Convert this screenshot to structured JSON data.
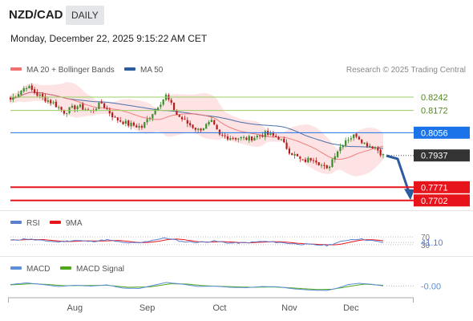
{
  "header": {
    "symbol": "NZD/CAD",
    "period": "DAILY",
    "datetime": "Monday, December 22, 2025 9:15:22 AM CET"
  },
  "legend": {
    "ma20": "MA 20 + Bollinger Bands",
    "ma50": "MA 50",
    "copyright": "Research © 2025 Trading Central",
    "rsi": "RSI",
    "rsi_ma": "9MA",
    "macd": "MACD",
    "macd_signal": "MACD Signal"
  },
  "colors": {
    "ma20": "#f07070",
    "ma50": "#2b5c9e",
    "bollinger_fill": "#fde3e3",
    "resistance": "#9ccc65",
    "pivot": "#1a73e8",
    "support": "#e8141b",
    "last": "#333333",
    "candle_up": "#3a8c2c",
    "candle_down": "#b71c1c",
    "rsi": "#5b7fd0",
    "rsi_ma": "#e8141b",
    "macd": "#5b8fd8",
    "macd_signal": "#4fa81a",
    "arrow": "#2b5c9e"
  },
  "chart_data": [
    {
      "type": "candlestick",
      "pair": "NZD/CAD",
      "x_ticks": [
        "Aug",
        "Sep",
        "Oct",
        "Nov",
        "Dec"
      ],
      "ylim": [
        0.768,
        0.833
      ],
      "levels": [
        {
          "name": "resistance-2",
          "value": 0.8242,
          "label": "0.8242",
          "style": "resistance"
        },
        {
          "name": "resistance-1",
          "value": 0.8172,
          "label": "0.8172",
          "style": "resistance"
        },
        {
          "name": "pivot",
          "value": 0.8056,
          "label": "0.8056",
          "style": "pivot"
        },
        {
          "name": "last-price",
          "value": 0.7937,
          "label": "0.7937",
          "style": "last"
        },
        {
          "name": "support-1",
          "value": 0.7771,
          "label": "0.7771",
          "style": "support"
        },
        {
          "name": "support-2",
          "value": 0.7702,
          "label": "0.7702",
          "style": "support"
        }
      ],
      "forecast_target": 0.7771,
      "close_anchors": [
        [
          0,
          0.823
        ],
        [
          6,
          0.83
        ],
        [
          10,
          0.8255
        ],
        [
          16,
          0.821
        ],
        [
          20,
          0.8165
        ],
        [
          25,
          0.8195
        ],
        [
          30,
          0.817
        ],
        [
          34,
          0.821
        ],
        [
          39,
          0.813
        ],
        [
          44,
          0.81
        ],
        [
          49,
          0.8085
        ],
        [
          54,
          0.818
        ],
        [
          58,
          0.825
        ],
        [
          62,
          0.815
        ],
        [
          66,
          0.8105
        ],
        [
          70,
          0.807
        ],
        [
          75,
          0.811
        ],
        [
          78,
          0.804
        ],
        [
          83,
          0.803
        ],
        [
          89,
          0.8025
        ],
        [
          95,
          0.805
        ],
        [
          100,
          0.803
        ],
        [
          104,
          0.796
        ],
        [
          109,
          0.7905
        ],
        [
          113,
          0.7925
        ],
        [
          118,
          0.786
        ],
        [
          121,
          0.7945
        ],
        [
          125,
          0.802
        ],
        [
          129,
          0.8045
        ],
        [
          132,
          0.8
        ],
        [
          136,
          0.798
        ],
        [
          139,
          0.7937
        ]
      ]
    },
    {
      "type": "line",
      "name": "RSI",
      "ylim": [
        0,
        100
      ],
      "levels": [
        70,
        30
      ],
      "level_labels": [
        "70",
        "30"
      ],
      "value_label": "41.10",
      "anchors": [
        [
          0,
          52
        ],
        [
          6,
          60
        ],
        [
          12,
          50
        ],
        [
          18,
          44
        ],
        [
          24,
          52
        ],
        [
          30,
          46
        ],
        [
          36,
          55
        ],
        [
          42,
          40
        ],
        [
          48,
          38
        ],
        [
          54,
          56
        ],
        [
          58,
          64
        ],
        [
          64,
          46
        ],
        [
          70,
          42
        ],
        [
          76,
          48
        ],
        [
          82,
          38
        ],
        [
          88,
          40
        ],
        [
          94,
          46
        ],
        [
          100,
          42
        ],
        [
          106,
          34
        ],
        [
          112,
          30
        ],
        [
          118,
          26
        ],
        [
          122,
          40
        ],
        [
          126,
          55
        ],
        [
          130,
          60
        ],
        [
          134,
          52
        ],
        [
          139,
          41.1
        ]
      ]
    },
    {
      "type": "line",
      "name": "MACD",
      "ylim": [
        -0.004,
        0.004
      ],
      "value_label": "-0.00",
      "macd_anchors": [
        [
          0,
          0.0006
        ],
        [
          6,
          0.0014
        ],
        [
          12,
          0.0006
        ],
        [
          18,
          -0.0004
        ],
        [
          24,
          0.0002
        ],
        [
          30,
          -0.0002
        ],
        [
          36,
          0.0004
        ],
        [
          42,
          -0.0012
        ],
        [
          48,
          -0.0014
        ],
        [
          54,
          0.0004
        ],
        [
          58,
          0.0016
        ],
        [
          64,
          0.0008
        ],
        [
          70,
          -0.0004
        ],
        [
          76,
          -0.0002
        ],
        [
          82,
          -0.0008
        ],
        [
          88,
          -0.001
        ],
        [
          94,
          -0.0004
        ],
        [
          100,
          -0.0006
        ],
        [
          106,
          -0.0016
        ],
        [
          112,
          -0.0022
        ],
        [
          118,
          -0.0024
        ],
        [
          122,
          -0.0012
        ],
        [
          126,
          0.0006
        ],
        [
          130,
          0.0012
        ],
        [
          134,
          0.0008
        ],
        [
          139,
          -0.0001
        ]
      ],
      "signal_anchors": [
        [
          0,
          0.0004
        ],
        [
          8,
          0.001
        ],
        [
          14,
          0.0006
        ],
        [
          20,
          0.0
        ],
        [
          28,
          0.0001
        ],
        [
          36,
          0.0002
        ],
        [
          44,
          -0.0008
        ],
        [
          52,
          -0.0006
        ],
        [
          60,
          0.001
        ],
        [
          66,
          0.0008
        ],
        [
          72,
          0.0
        ],
        [
          80,
          -0.0004
        ],
        [
          90,
          -0.0008
        ],
        [
          98,
          -0.0006
        ],
        [
          106,
          -0.0012
        ],
        [
          114,
          -0.0019
        ],
        [
          120,
          -0.0018
        ],
        [
          126,
          -0.0004
        ],
        [
          132,
          0.0008
        ],
        [
          139,
          0.0002
        ]
      ]
    }
  ]
}
